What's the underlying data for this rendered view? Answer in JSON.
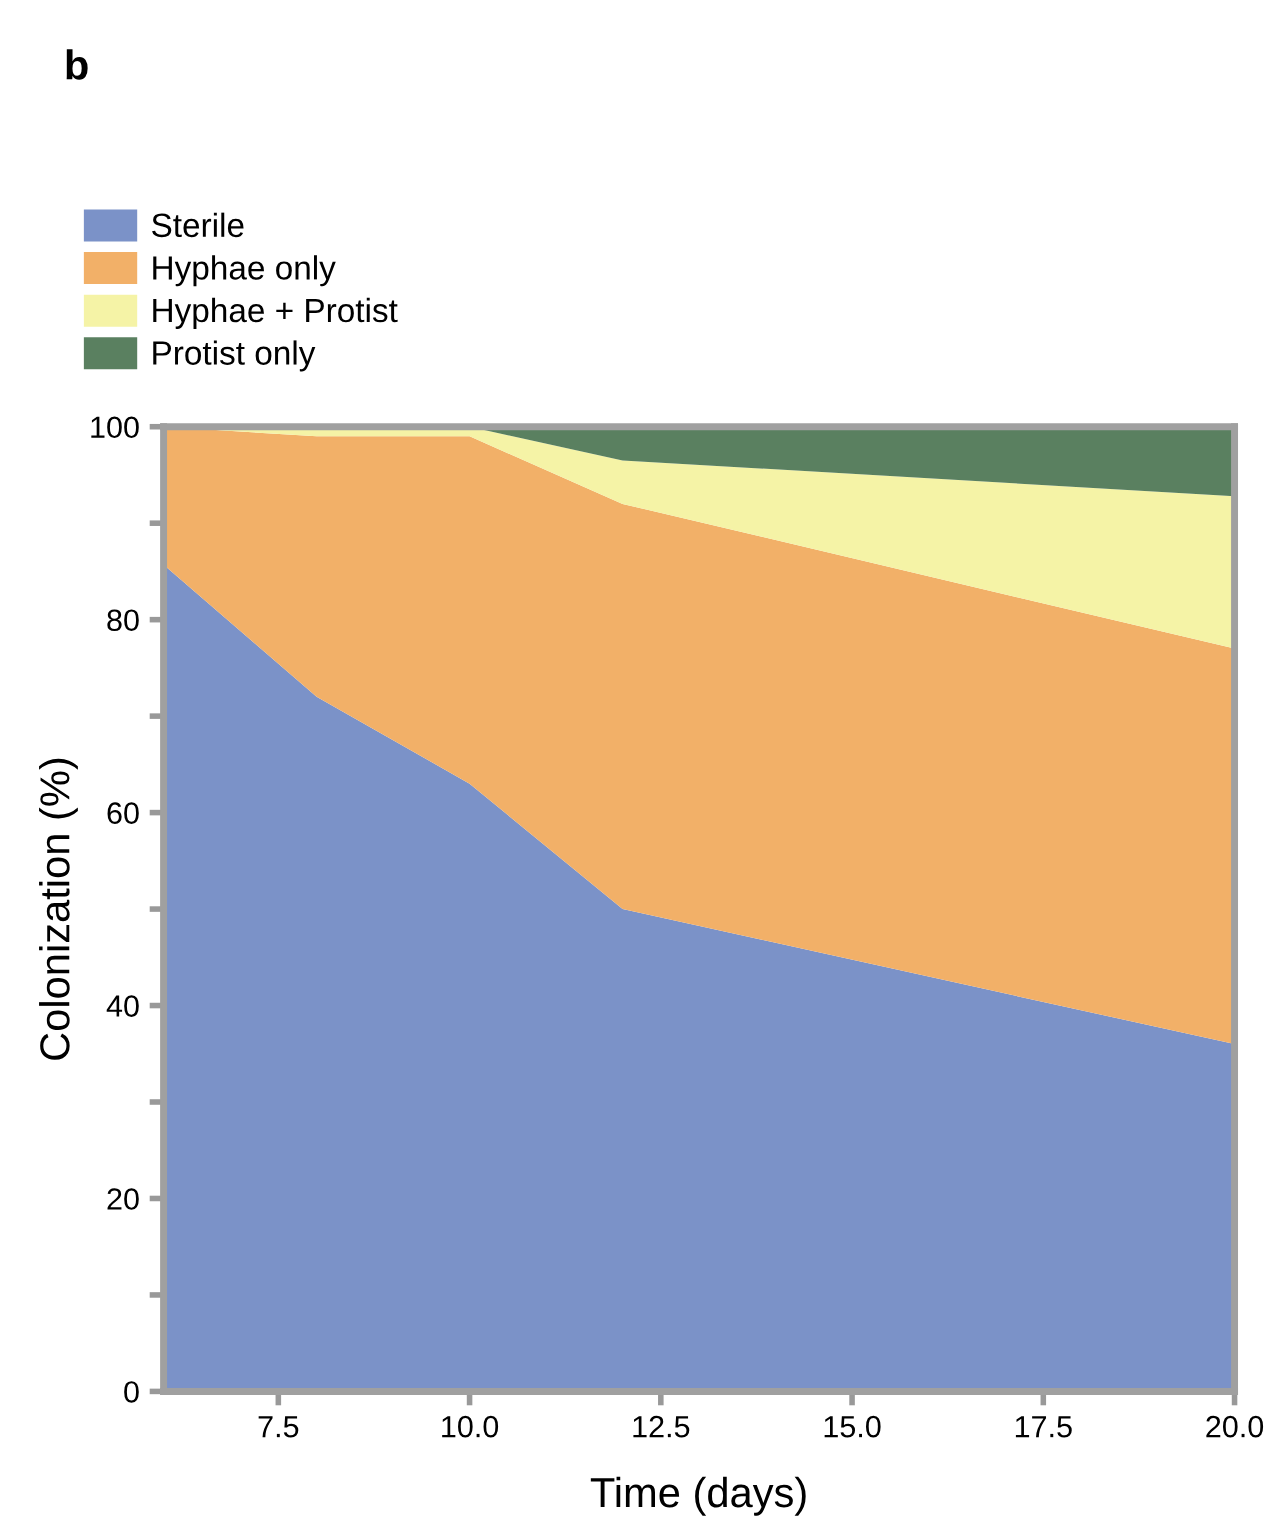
{
  "chart_data": {
    "type": "area",
    "stacked": true,
    "title": "b",
    "xlabel": "Time (days)",
    "ylabel": "Colonization (%)",
    "x": [
      6,
      8,
      10,
      12,
      20
    ],
    "series": [
      {
        "name": "Sterile",
        "color": "#7b92c8",
        "values": [
          85.7,
          72,
          63,
          50,
          36
        ]
      },
      {
        "name": "Hyphae only",
        "color": "#f2b068",
        "values": [
          14.3,
          27,
          36,
          42,
          41
        ]
      },
      {
        "name": "Hyphae + Protist",
        "color": "#f5f3a6",
        "values": [
          0,
          1,
          1,
          4.5,
          15.8
        ]
      },
      {
        "name": "Protist only",
        "color": "#5a8060",
        "values": [
          0,
          0,
          0,
          3.5,
          7.2
        ]
      }
    ],
    "xlim": [
      6,
      20
    ],
    "xticks": [
      {
        "value": 7.5,
        "label": "7.5"
      },
      {
        "value": 10,
        "label": "10.0"
      },
      {
        "value": 12.5,
        "label": "12.5"
      },
      {
        "value": 15,
        "label": "15.0"
      },
      {
        "value": 17.5,
        "label": "17.5"
      },
      {
        "value": 20,
        "label": "20.0"
      }
    ],
    "ylim": [
      0,
      100
    ],
    "yticks": [
      0,
      {
        "value": 10,
        "label": null
      },
      20,
      {
        "value": 30,
        "label": null
      },
      40,
      {
        "value": 50,
        "label": null
      },
      60,
      {
        "value": 70,
        "label": null
      },
      80,
      {
        "value": 90,
        "label": null
      },
      100
    ],
    "grid": false,
    "legend": "top left"
  }
}
